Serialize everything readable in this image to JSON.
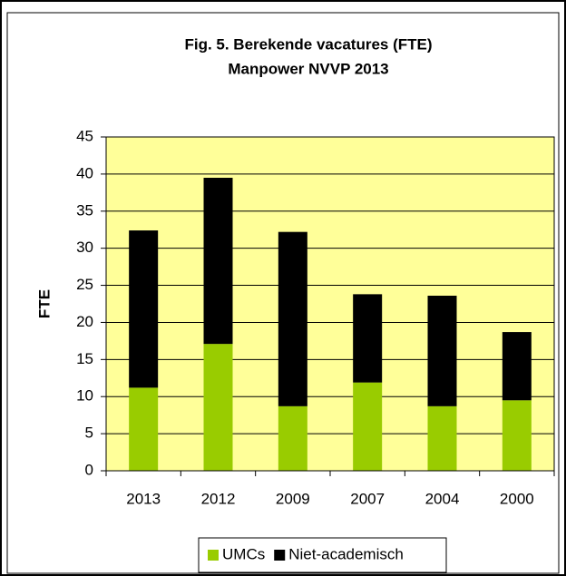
{
  "chart_data": {
    "type": "stacked_bar",
    "title": "Fig. 5. Berekende vacatures (FTE)",
    "subtitle": "Manpower NVVP 2013",
    "y_label": "FTE",
    "categories": [
      "2013",
      "2012",
      "2009",
      "2007",
      "2004",
      "2000"
    ],
    "series": [
      {
        "name": "UMCs",
        "color": "#99cc00",
        "values": [
          11.2,
          17.1,
          8.7,
          11.9,
          8.7,
          9.5
        ]
      },
      {
        "name": "Niet-academisch",
        "color": "#000000",
        "values": [
          21.2,
          22.4,
          23.5,
          11.9,
          14.9,
          9.2
        ]
      }
    ],
    "ylim": [
      0,
      45
    ],
    "yticks": [
      0,
      5,
      10,
      15,
      20,
      25,
      30,
      35,
      40,
      45
    ],
    "grid": true,
    "plot_background": "#ffff99",
    "legend": "bottom"
  }
}
